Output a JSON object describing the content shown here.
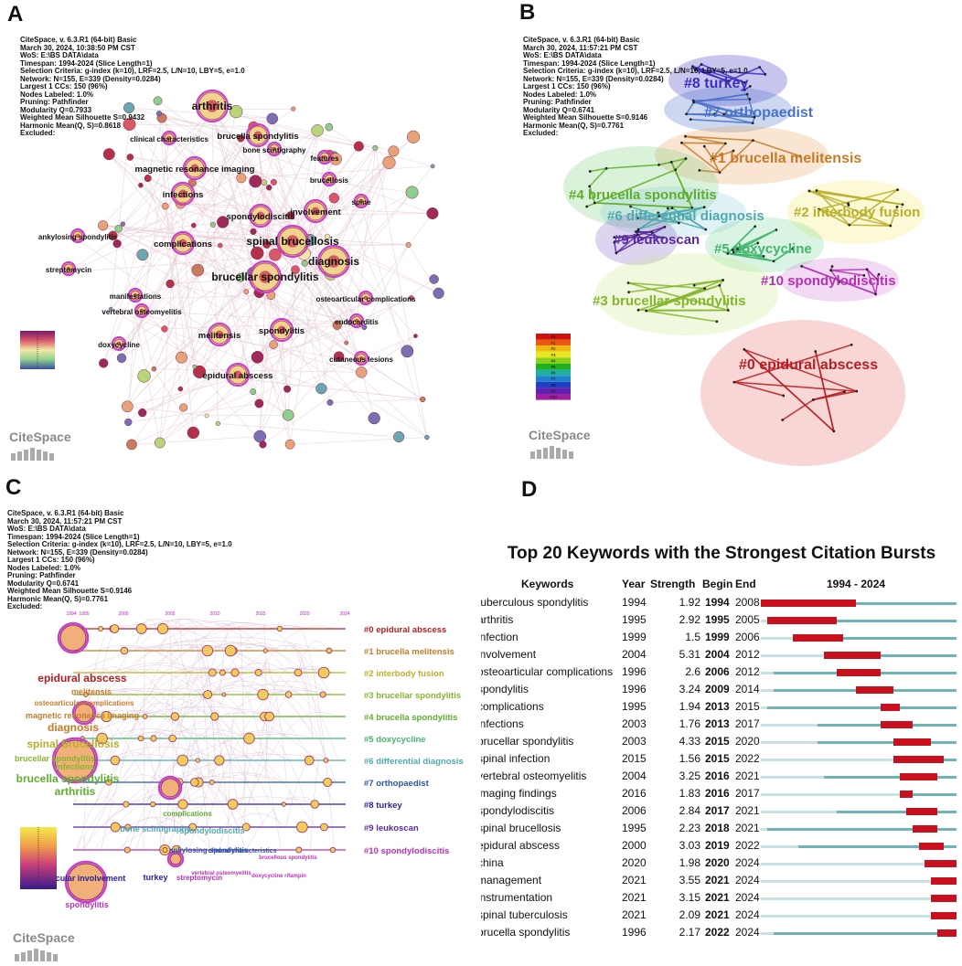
{
  "panels": {
    "a": {
      "label": "A",
      "info": [
        "CiteSpace, v. 6.3.R1 (64-bit) Basic",
        "March 30, 2024, 10:38:50 PM CST",
        "WoS: E:\\BS DATA\\data",
        "Timespan: 1994-2024 (Slice Length=1)",
        "Selection Criteria: g-index (k=10), LRF=2.5, L/N=10, LBY=5, e=1.0",
        "Network: N=155, E=339 (Density=0.0284)",
        "Largest 1 CCs: 150 (96%)",
        "Nodes Labeled: 1.0%",
        "Pruning: Pathfinder",
        "Modularity Q=0.7933",
        "Weighted Mean Silhouette S=0.9432",
        "Harmonic Mean(Q, S)=0.8618",
        "Excluded:"
      ],
      "logo": "CiteSpace",
      "keywords": [
        {
          "text": "arthritis",
          "size": "large"
        },
        {
          "text": "clinical characteristics",
          "size": "small"
        },
        {
          "text": "brucella spondylitis",
          "size": "medium"
        },
        {
          "text": "bone scintigraphy",
          "size": "small"
        },
        {
          "text": "features",
          "size": "small"
        },
        {
          "text": "magnetic resonance imaging",
          "size": "medium"
        },
        {
          "text": "brucellosis",
          "size": "small"
        },
        {
          "text": "infections",
          "size": "medium"
        },
        {
          "text": "spine",
          "size": "small"
        },
        {
          "text": "involvement",
          "size": "medium"
        },
        {
          "text": "spondylodiscitis",
          "size": "medium"
        },
        {
          "text": "ankylosing spondylitis",
          "size": "small"
        },
        {
          "text": "complications",
          "size": "medium"
        },
        {
          "text": "spinal brucellosis",
          "size": "large"
        },
        {
          "text": "diagnosis",
          "size": "large"
        },
        {
          "text": "streptomycin",
          "size": "small"
        },
        {
          "text": "brucellar spondylitis",
          "size": "large"
        },
        {
          "text": "manifestations",
          "size": "small"
        },
        {
          "text": "osteoarticular complications",
          "size": "small"
        },
        {
          "text": "vertebral osteomyelitis",
          "size": "small"
        },
        {
          "text": "endocarditis",
          "size": "small"
        },
        {
          "text": "melitensis",
          "size": "medium"
        },
        {
          "text": "spondylitis",
          "size": "medium"
        },
        {
          "text": "doxycycline",
          "size": "small"
        },
        {
          "text": "cutaneous lesions",
          "size": "small"
        },
        {
          "text": "epidural abscess",
          "size": "medium"
        }
      ]
    },
    "b": {
      "label": "B",
      "info": [
        "CiteSpace, v. 6.3.R1 (64-bit) Basic",
        "March 30, 2024, 11:57:21 PM CST",
        "WoS: E:\\BS DATA\\data",
        "Timespan: 1994-2024 (Slice Length=1)",
        "Selection Criteria: g-index (k=10), LRF=2.5, L/N=10, LBY=5, e=1.0",
        "Network: N=155, E=339 (Density=0.0284)",
        "Largest 1 CCs: 150 (96%)",
        "Nodes Labeled: 1.0%",
        "Pruning: Pathfinder",
        "Modularity Q=0.6741",
        "Weighted Mean Silhouette S=0.9146",
        "Harmonic Mean(Q, S)=0.7761",
        "Excluded:"
      ],
      "logo": "CiteSpace",
      "clusters": [
        {
          "label": "#8 turkey",
          "color": "#3a2fc4"
        },
        {
          "label": "#7 orthopaedist",
          "color": "#4a72c8"
        },
        {
          "label": "#1 brucella melitensis",
          "color": "#c67b2a"
        },
        {
          "label": "#4 brucella spondylitis",
          "color": "#5fae2e"
        },
        {
          "label": "#2 interbody fusion",
          "color": "#b9b02a"
        },
        {
          "label": "#6 differential diagnosis",
          "color": "#4fa9b0"
        },
        {
          "label": "#9 leukoscan",
          "color": "#5a2aa0"
        },
        {
          "label": "#5 doxycycline",
          "color": "#43b56d"
        },
        {
          "label": "#10 spondylodiscitis",
          "color": "#b532b5"
        },
        {
          "label": "#3 brucellar spondylitis",
          "color": "#86b52e"
        },
        {
          "label": "#0 epidural abscess",
          "color": "#b52024"
        }
      ],
      "legend_ticks": [
        "#0",
        "#1",
        "#2",
        "#3",
        "#4",
        "#5",
        "#6",
        "#7",
        "#8",
        "#9",
        "#10"
      ]
    },
    "c": {
      "label": "C",
      "info": [
        "CiteSpace, v. 6.3.R1 (64-bit) Basic",
        "March 30, 2024, 11:57:21 PM CST",
        "WoS: E:\\BS DATA\\data",
        "Timespan: 1994-2024 (Slice Length=1)",
        "Selection Criteria: g-index (k=10), LRF=2.5, L/N=10, LBY=5, e=1.0",
        "Network: N=155, E=339 (Density=0.0284)",
        "Largest 1 CCs: 150 (96%)",
        "Nodes Labeled: 1.0%",
        "Pruning: Pathfinder",
        "Modularity Q=0.6741",
        "Weighted Mean Silhouette S=0.9146",
        "Harmonic Mean(Q, S)=0.7761",
        "Excluded:"
      ],
      "logo": "CiteSpace",
      "years": [
        "1994",
        "1995",
        "2000",
        "2005",
        "2010",
        "2015",
        "2020",
        "2024"
      ],
      "clusters": [
        {
          "label": "#0 epidural abscess",
          "color": "#b52024"
        },
        {
          "label": "#1 brucella melitensis",
          "color": "#c67b2a"
        },
        {
          "label": "#2 interbody fusion",
          "color": "#b9b02a"
        },
        {
          "label": "#3 brucellar spondylitis",
          "color": "#86b52e"
        },
        {
          "label": "#4 brucella spondylitis",
          "color": "#5fae2e"
        },
        {
          "label": "#5 doxycycline",
          "color": "#43b56d"
        },
        {
          "label": "#6 differential diagnosis",
          "color": "#4fa9b0"
        },
        {
          "label": "#7 orthopaedist",
          "color": "#2b56a8"
        },
        {
          "label": "#8 turkey",
          "color": "#2a1f9c"
        },
        {
          "label": "#9 leukoscan",
          "color": "#5a2aa0"
        },
        {
          "label": "#10 spondylodiscitis",
          "color": "#b532b5"
        }
      ],
      "node_labels": [
        {
          "text": "epidural abscess",
          "color": "#b52024",
          "size": "big"
        },
        {
          "text": "melitensis",
          "color": "#c67b2a",
          "size": "big"
        },
        {
          "text": "osteoarticular complications",
          "color": "#c67b2a",
          "size": "mid"
        },
        {
          "text": "magnetic resonance imaging",
          "color": "#c67b2a",
          "size": "mid"
        },
        {
          "text": "diagnosis",
          "color": "#c67b2a",
          "size": "big"
        },
        {
          "text": "spinal brucellosis",
          "color": "#b9b02a",
          "size": "big"
        },
        {
          "text": "brucellar spondylitis",
          "color": "#86b52e",
          "size": "big"
        },
        {
          "text": "infections",
          "color": "#86b52e",
          "size": "mid"
        },
        {
          "text": "brucella spondylitis",
          "color": "#5fae2e",
          "size": "big"
        },
        {
          "text": "arthritis",
          "color": "#5fae2e",
          "size": "big"
        },
        {
          "text": "complications",
          "color": "#5fae2e",
          "size": "big"
        },
        {
          "text": "bone scintigraphy",
          "color": "#4fa9b0",
          "size": "mid"
        },
        {
          "text": "spondylodiscitis",
          "color": "#4fa9b0",
          "size": "mid"
        },
        {
          "text": "ankylosing spondylitis",
          "color": "#2b56a8",
          "size": "mid"
        },
        {
          "text": "clinical characteristics",
          "color": "#2b56a8",
          "size": "mid"
        },
        {
          "text": "osteoarticular involvement",
          "color": "#2a1f9c",
          "size": "mid"
        },
        {
          "text": "turkey",
          "color": "#2a1f9c",
          "size": "small"
        },
        {
          "text": "streptomycin",
          "color": "#b532b5",
          "size": "mid"
        },
        {
          "text": "vertebral osteomyelitis",
          "color": "#b532b5",
          "size": "mid"
        },
        {
          "text": "doxycycline rifampin",
          "color": "#b532b5",
          "size": "small"
        },
        {
          "text": "brucellous spondylitis",
          "color": "#b532b5",
          "size": "small"
        },
        {
          "text": "spondylitis",
          "color": "#b532b5",
          "size": "mid"
        }
      ]
    },
    "d": {
      "label": "D",
      "title": "Top 20 Keywords with the Strongest Citation Bursts",
      "columns": {
        "keywords": "Keywords",
        "year": "Year",
        "strength": "Strength",
        "begin": "Begin",
        "end": "End",
        "range": "1994 - 2024"
      },
      "range_start": 1994,
      "range_end": 2024,
      "rows": [
        {
          "keyword": "tuberculous spondylitis",
          "year": 1994,
          "strength": "1.92",
          "begin": 1994,
          "end": 2008
        },
        {
          "keyword": "arthritis",
          "year": 1995,
          "strength": "2.92",
          "begin": 1995,
          "end": 2005
        },
        {
          "keyword": "infection",
          "year": 1999,
          "strength": "1.5",
          "begin": 1999,
          "end": 2006
        },
        {
          "keyword": "involvement",
          "year": 2004,
          "strength": "5.31",
          "begin": 2004,
          "end": 2012
        },
        {
          "keyword": "osteoarticular complications",
          "year": 1996,
          "strength": "2.6",
          "begin": 2006,
          "end": 2012
        },
        {
          "keyword": "spondylitis",
          "year": 1996,
          "strength": "3.24",
          "begin": 2009,
          "end": 2014
        },
        {
          "keyword": "complications",
          "year": 1995,
          "strength": "1.94",
          "begin": 2013,
          "end": 2015
        },
        {
          "keyword": "infections",
          "year": 2003,
          "strength": "1.76",
          "begin": 2013,
          "end": 2017
        },
        {
          "keyword": "brucellar spondylitis",
          "year": 2003,
          "strength": "4.33",
          "begin": 2015,
          "end": 2020
        },
        {
          "keyword": "spinal infection",
          "year": 2015,
          "strength": "1.56",
          "begin": 2015,
          "end": 2022
        },
        {
          "keyword": "vertebral osteomyelitis",
          "year": 2004,
          "strength": "3.25",
          "begin": 2016,
          "end": 2021
        },
        {
          "keyword": "imaging findings",
          "year": 2016,
          "strength": "1.83",
          "begin": 2016,
          "end": 2017
        },
        {
          "keyword": "spondylodiscitis",
          "year": 2006,
          "strength": "2.84",
          "begin": 2017,
          "end": 2021
        },
        {
          "keyword": "spinal brucellosis",
          "year": 1995,
          "strength": "2.23",
          "begin": 2018,
          "end": 2021
        },
        {
          "keyword": "epidural abscess",
          "year": 2000,
          "strength": "3.03",
          "begin": 2019,
          "end": 2022
        },
        {
          "keyword": "china",
          "year": 2020,
          "strength": "1.98",
          "begin": 2020,
          "end": 2024
        },
        {
          "keyword": "management",
          "year": 2021,
          "strength": "3.55",
          "begin": 2021,
          "end": 2024
        },
        {
          "keyword": "instrumentation",
          "year": 2021,
          "strength": "3.15",
          "begin": 2021,
          "end": 2024
        },
        {
          "keyword": "spinal tuberculosis",
          "year": 2021,
          "strength": "2.09",
          "begin": 2021,
          "end": 2024
        },
        {
          "keyword": "brucella spondylitis",
          "year": 1996,
          "strength": "2.17",
          "begin": 2022,
          "end": 2024
        }
      ]
    }
  }
}
